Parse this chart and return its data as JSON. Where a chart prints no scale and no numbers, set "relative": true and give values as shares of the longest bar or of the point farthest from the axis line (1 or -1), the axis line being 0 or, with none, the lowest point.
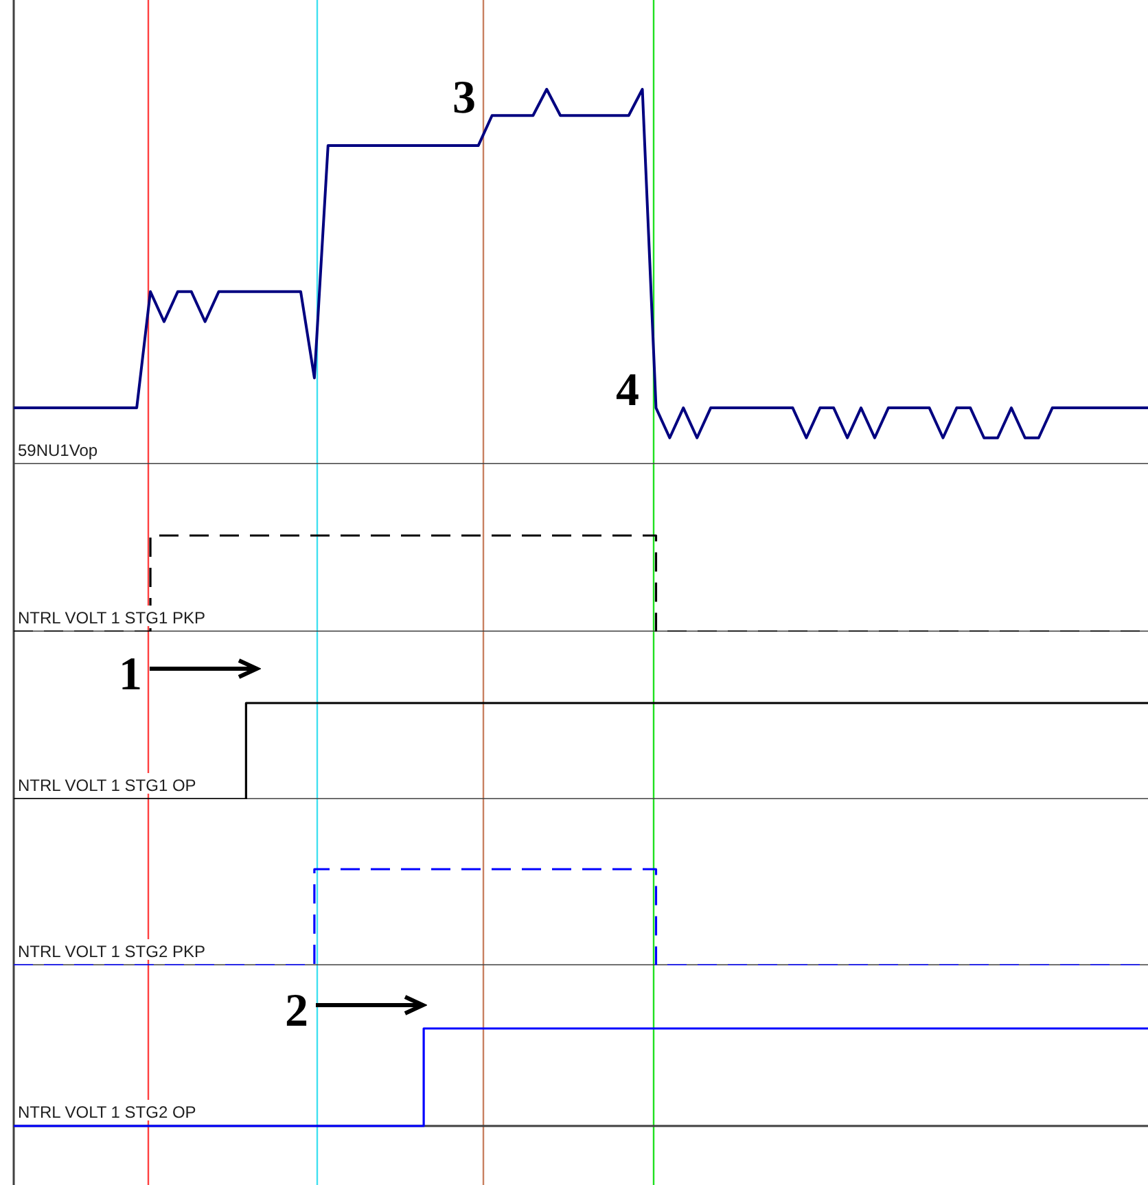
{
  "chart_data": [
    {
      "type": "line",
      "relative": true,
      "tick_labels": false,
      "categories": [
        null,
        null,
        null,
        null,
        null,
        null,
        null,
        null,
        null,
        null,
        null,
        null,
        null,
        null,
        null,
        null,
        null,
        null,
        null,
        null,
        null,
        null,
        null,
        null,
        null,
        null,
        null,
        null,
        null,
        null,
        null,
        null,
        null,
        null,
        null,
        null,
        null,
        null,
        null,
        null,
        null,
        null,
        null,
        null,
        null,
        null,
        null,
        null,
        null,
        null,
        null,
        null,
        null,
        null,
        null,
        null,
        null,
        null,
        null,
        null,
        null,
        null,
        null,
        null,
        null,
        null,
        null,
        null,
        null,
        null,
        null,
        null,
        null,
        null,
        null,
        null,
        null,
        null,
        null,
        null,
        null,
        null,
        null,
        null
      ],
      "series": [
        {
          "name": "59NU1Vop",
          "color": "#000080",
          "values": [
            0.15,
            0.15,
            0.15,
            0.15,
            0.15,
            0.15,
            0.15,
            0.15,
            0.15,
            0.15,
            0.46,
            0.38,
            0.46,
            0.46,
            0.38,
            0.46,
            0.46,
            0.46,
            0.46,
            0.46,
            0.46,
            0.46,
            0.23,
            0.85,
            0.85,
            0.85,
            0.85,
            0.85,
            0.85,
            0.85,
            0.85,
            0.85,
            0.85,
            0.85,
            0.85,
            0.93,
            0.93,
            0.93,
            0.93,
            1.0,
            0.93,
            0.93,
            0.93,
            0.93,
            0.93,
            0.93,
            1.0,
            0.15,
            0.07,
            0.15,
            0.07,
            0.15,
            0.15,
            0.15,
            0.15,
            0.15,
            0.15,
            0.15,
            0.07,
            0.15,
            0.15,
            0.07,
            0.15,
            0.07,
            0.15,
            0.15,
            0.15,
            0.15,
            0.07,
            0.15,
            0.15,
            0.07,
            0.07,
            0.15,
            0.07,
            0.07,
            0.15,
            0.15,
            0.15,
            0.15,
            0.15,
            0.15,
            0.15,
            0.15
          ]
        }
      ],
      "annotations": [
        "3",
        "4"
      ]
    },
    {
      "type": "step",
      "relative": true,
      "tick_labels": false,
      "categories": [
        null,
        null,
        null,
        null,
        null,
        null,
        null,
        null,
        null,
        null,
        null,
        null,
        null,
        null,
        null,
        null,
        null,
        null,
        null,
        null,
        null,
        null,
        null,
        null,
        null,
        null,
        null,
        null,
        null,
        null,
        null,
        null,
        null,
        null,
        null,
        null,
        null,
        null,
        null,
        null,
        null,
        null,
        null,
        null,
        null,
        null,
        null,
        null,
        null,
        null,
        null,
        null,
        null,
        null,
        null,
        null,
        null,
        null,
        null,
        null,
        null,
        null,
        null,
        null,
        null,
        null,
        null,
        null,
        null,
        null,
        null,
        null,
        null,
        null,
        null,
        null,
        null,
        null,
        null,
        null,
        null,
        null,
        null,
        null
      ],
      "series": [
        {
          "name": "NTRL VOLT 1 STG1 PKP",
          "color": "#000000",
          "line_style": "dashed",
          "values": [
            0,
            0,
            0,
            0,
            0,
            0,
            0,
            0,
            0,
            0,
            1,
            1,
            1,
            1,
            1,
            1,
            1,
            1,
            1,
            1,
            1,
            1,
            1,
            1,
            1,
            1,
            1,
            1,
            1,
            1,
            1,
            1,
            1,
            1,
            1,
            1,
            1,
            1,
            1,
            1,
            1,
            1,
            1,
            1,
            1,
            1,
            1,
            0,
            0,
            0,
            0,
            0,
            0,
            0,
            0,
            0,
            0,
            0,
            0,
            0,
            0,
            0,
            0,
            0,
            0,
            0,
            0,
            0,
            0,
            0,
            0,
            0,
            0,
            0,
            0,
            0,
            0,
            0,
            0,
            0,
            0,
            0,
            0,
            0
          ]
        }
      ]
    },
    {
      "type": "step",
      "relative": true,
      "tick_labels": false,
      "categories": [
        null,
        null,
        null,
        null,
        null,
        null,
        null,
        null,
        null,
        null,
        null,
        null,
        null,
        null,
        null,
        null,
        null,
        null,
        null,
        null,
        null,
        null,
        null,
        null,
        null,
        null,
        null,
        null,
        null,
        null,
        null,
        null,
        null,
        null,
        null,
        null,
        null,
        null,
        null,
        null,
        null,
        null,
        null,
        null,
        null,
        null,
        null,
        null,
        null,
        null,
        null,
        null,
        null,
        null,
        null,
        null,
        null,
        null,
        null,
        null,
        null,
        null,
        null,
        null,
        null,
        null,
        null,
        null,
        null,
        null,
        null,
        null,
        null,
        null,
        null,
        null,
        null,
        null,
        null,
        null,
        null,
        null,
        null,
        null
      ],
      "series": [
        {
          "name": "NTRL VOLT 1 STG1 OP",
          "color": "#000000",
          "values": [
            0,
            0,
            0,
            0,
            0,
            0,
            0,
            0,
            0,
            0,
            0,
            0,
            0,
            0,
            0,
            0,
            0,
            1,
            1,
            1,
            1,
            1,
            1,
            1,
            1,
            1,
            1,
            1,
            1,
            1,
            1,
            1,
            1,
            1,
            1,
            1,
            1,
            1,
            1,
            1,
            1,
            1,
            1,
            1,
            1,
            1,
            1,
            1,
            1,
            1,
            1,
            1,
            1,
            1,
            1,
            1,
            1,
            1,
            1,
            1,
            1,
            1,
            1,
            1,
            1,
            1,
            1,
            1,
            1,
            1,
            1,
            1,
            1,
            1,
            1,
            1,
            1,
            1,
            1,
            1,
            1,
            1,
            1,
            1
          ]
        }
      ],
      "annotations": [
        "1"
      ]
    },
    {
      "type": "step",
      "relative": true,
      "tick_labels": false,
      "categories": [
        null,
        null,
        null,
        null,
        null,
        null,
        null,
        null,
        null,
        null,
        null,
        null,
        null,
        null,
        null,
        null,
        null,
        null,
        null,
        null,
        null,
        null,
        null,
        null,
        null,
        null,
        null,
        null,
        null,
        null,
        null,
        null,
        null,
        null,
        null,
        null,
        null,
        null,
        null,
        null,
        null,
        null,
        null,
        null,
        null,
        null,
        null,
        null,
        null,
        null,
        null,
        null,
        null,
        null,
        null,
        null,
        null,
        null,
        null,
        null,
        null,
        null,
        null,
        null,
        null,
        null,
        null,
        null,
        null,
        null,
        null,
        null,
        null,
        null,
        null,
        null,
        null,
        null,
        null,
        null,
        null,
        null,
        null,
        null
      ],
      "series": [
        {
          "name": "NTRL VOLT 1 STG2 PKP",
          "color": "#0000ff",
          "line_style": "dashed",
          "values": [
            0,
            0,
            0,
            0,
            0,
            0,
            0,
            0,
            0,
            0,
            0,
            0,
            0,
            0,
            0,
            0,
            0,
            0,
            0,
            0,
            0,
            0,
            1,
            1,
            1,
            1,
            1,
            1,
            1,
            1,
            1,
            1,
            1,
            1,
            1,
            1,
            1,
            1,
            1,
            1,
            1,
            1,
            1,
            1,
            1,
            1,
            1,
            0,
            0,
            0,
            0,
            0,
            0,
            0,
            0,
            0,
            0,
            0,
            0,
            0,
            0,
            0,
            0,
            0,
            0,
            0,
            0,
            0,
            0,
            0,
            0,
            0,
            0,
            0,
            0,
            0,
            0,
            0,
            0,
            0,
            0,
            0,
            0,
            0
          ]
        }
      ]
    },
    {
      "type": "step",
      "relative": true,
      "tick_labels": false,
      "categories": [
        null,
        null,
        null,
        null,
        null,
        null,
        null,
        null,
        null,
        null,
        null,
        null,
        null,
        null,
        null,
        null,
        null,
        null,
        null,
        null,
        null,
        null,
        null,
        null,
        null,
        null,
        null,
        null,
        null,
        null,
        null,
        null,
        null,
        null,
        null,
        null,
        null,
        null,
        null,
        null,
        null,
        null,
        null,
        null,
        null,
        null,
        null,
        null,
        null,
        null,
        null,
        null,
        null,
        null,
        null,
        null,
        null,
        null,
        null,
        null,
        null,
        null,
        null,
        null,
        null,
        null,
        null,
        null,
        null,
        null,
        null,
        null,
        null,
        null,
        null,
        null,
        null,
        null,
        null,
        null,
        null,
        null,
        null,
        null
      ],
      "series": [
        {
          "name": "NTRL VOLT 1 STG2 OP",
          "color": "#0000ff",
          "values": [
            0,
            0,
            0,
            0,
            0,
            0,
            0,
            0,
            0,
            0,
            0,
            0,
            0,
            0,
            0,
            0,
            0,
            0,
            0,
            0,
            0,
            0,
            0,
            0,
            0,
            0,
            0,
            0,
            0,
            0,
            1,
            1,
            1,
            1,
            1,
            1,
            1,
            1,
            1,
            1,
            1,
            1,
            1,
            1,
            1,
            1,
            1,
            1,
            1,
            1,
            1,
            1,
            1,
            1,
            1,
            1,
            1,
            1,
            1,
            1,
            1,
            1,
            1,
            1,
            1,
            1,
            1,
            1,
            1,
            1,
            1,
            1,
            1,
            1,
            1,
            1,
            1,
            1,
            1,
            1,
            1,
            1,
            1,
            1
          ]
        }
      ],
      "annotations": [
        "2"
      ]
    }
  ]
}
